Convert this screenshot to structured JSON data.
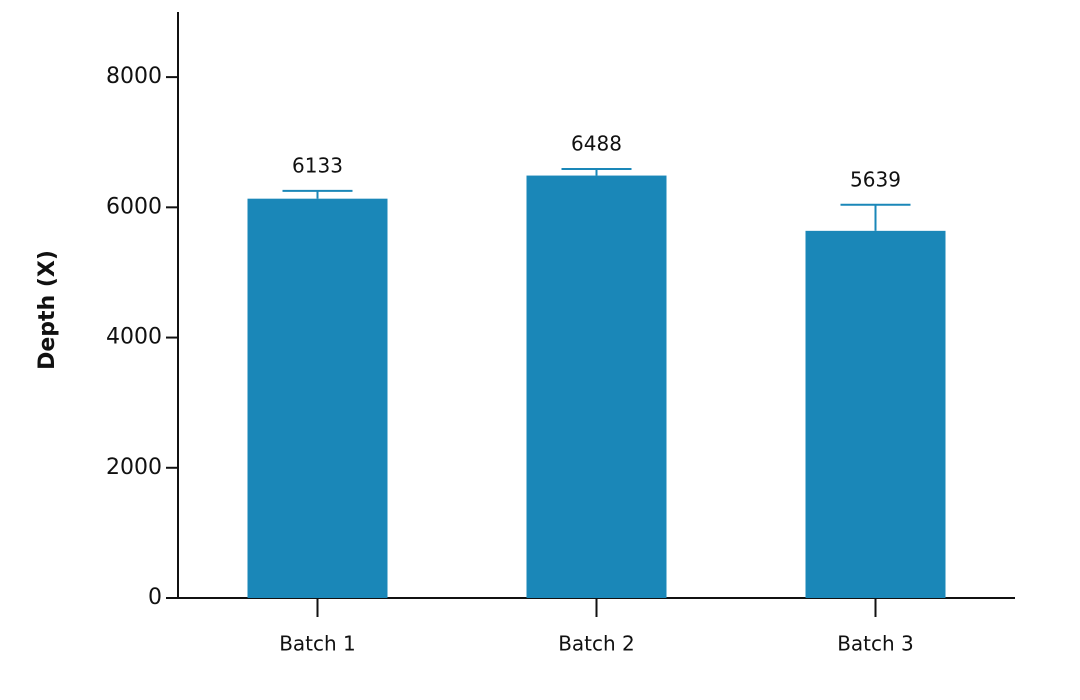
{
  "chart_data": {
    "type": "bar",
    "y_label": "Depth (X)",
    "categories": [
      "Batch 1",
      "Batch 2",
      "Batch 3"
    ],
    "values": [
      6133,
      6488,
      5639
    ],
    "errors": [
      120,
      100,
      400
    ],
    "color": "#1a87b8",
    "ylim": [
      0,
      9000
    ],
    "yticks": [
      0,
      2000,
      4000,
      6000,
      8000
    ]
  }
}
